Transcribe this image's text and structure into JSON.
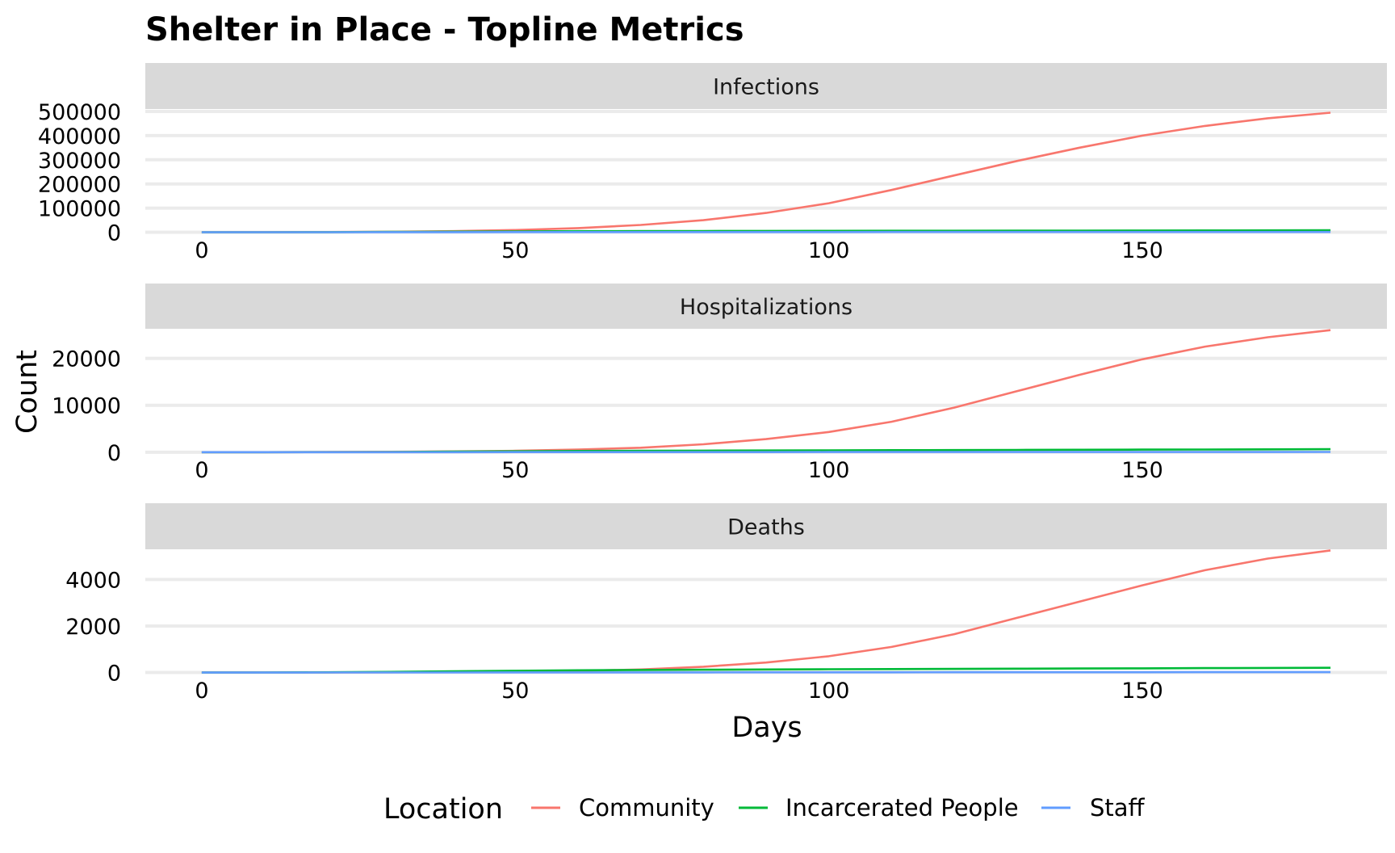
{
  "chart_data": {
    "type": "line",
    "title": "Shelter in Place - Topline Metrics",
    "xlabel": "Days",
    "ylabel": "Count",
    "grid": true,
    "legend_title": "Location",
    "legend_position": "bottom",
    "colors": {
      "Community": "#F8766D",
      "Incarcerated People": "#00BA38",
      "Staff": "#619CFF"
    },
    "x_ticks": [
      0,
      50,
      100,
      150
    ],
    "xlim": [
      -9,
      189
    ],
    "x": [
      0,
      10,
      20,
      30,
      40,
      50,
      60,
      70,
      80,
      90,
      100,
      110,
      120,
      130,
      140,
      150,
      160,
      170,
      180
    ],
    "facets": [
      {
        "label": "Infections",
        "y_ticks": [
          0,
          100000,
          200000,
          300000,
          400000,
          500000
        ],
        "y_tick_labels": [
          "0",
          "100000",
          "200000",
          "300000",
          "400000",
          "500000"
        ],
        "ylim": [
          -5000,
          510000
        ],
        "series": [
          {
            "name": "Community",
            "values": [
              0,
              200,
              800,
              2000,
              4500,
              9000,
              17000,
              30000,
              50000,
              80000,
              120000,
              175000,
              235000,
              295000,
              350000,
              400000,
              440000,
              472000,
              495000
            ]
          },
          {
            "name": "Incarcerated People",
            "values": [
              0,
              100,
              400,
              1200,
              2500,
              3500,
              4200,
              4700,
              5000,
              5300,
              5600,
              5900,
              6200,
              6500,
              6800,
              7100,
              7400,
              7700,
              8000
            ]
          },
          {
            "name": "Staff",
            "values": [
              0,
              50,
              150,
              300,
              450,
              550,
              620,
              680,
              730,
              780,
              820,
              860,
              900,
              940,
              980,
              1020,
              1060,
              1100,
              1150
            ]
          }
        ]
      },
      {
        "label": "Hospitalizations",
        "y_ticks": [
          0,
          10000,
          20000
        ],
        "y_tick_labels": [
          "0",
          "10000",
          "20000"
        ],
        "ylim": [
          -200,
          26300
        ],
        "series": [
          {
            "name": "Community",
            "values": [
              0,
              10,
              40,
              90,
              180,
              300,
              550,
              950,
              1700,
              2800,
              4300,
              6500,
              9500,
              13000,
              16500,
              19800,
              22500,
              24500,
              26000
            ]
          },
          {
            "name": "Incarcerated People",
            "values": [
              0,
              5,
              20,
              60,
              120,
              200,
              260,
              300,
              340,
              370,
              400,
              430,
              460,
              490,
              520,
              550,
              580,
              610,
              650
            ]
          },
          {
            "name": "Staff",
            "values": [
              0,
              2,
              5,
              10,
              15,
              20,
              24,
              27,
              30,
              32,
              34,
              36,
              38,
              40,
              42,
              44,
              46,
              48,
              50
            ]
          }
        ]
      },
      {
        "label": "Deaths",
        "y_ticks": [
          0,
          2000,
          4000
        ],
        "y_tick_labels": [
          "0",
          "2000",
          "4000"
        ],
        "ylim": [
          -50,
          5300
        ],
        "series": [
          {
            "name": "Community",
            "values": [
              0,
              1,
              4,
              10,
              20,
              40,
              70,
              130,
              250,
              430,
              700,
              1100,
              1650,
              2350,
              3050,
              3750,
              4400,
              4900,
              5250
            ]
          },
          {
            "name": "Incarcerated People",
            "values": [
              0,
              2,
              8,
              25,
              50,
              75,
              95,
              110,
              120,
              130,
              140,
              148,
              156,
              164,
              172,
              180,
              188,
              196,
              205
            ]
          },
          {
            "name": "Staff",
            "values": [
              0,
              0,
              1,
              2,
              3,
              4,
              5,
              6,
              7,
              8,
              9,
              10,
              11,
              12,
              13,
              14,
              15,
              16,
              17
            ]
          }
        ]
      }
    ]
  }
}
